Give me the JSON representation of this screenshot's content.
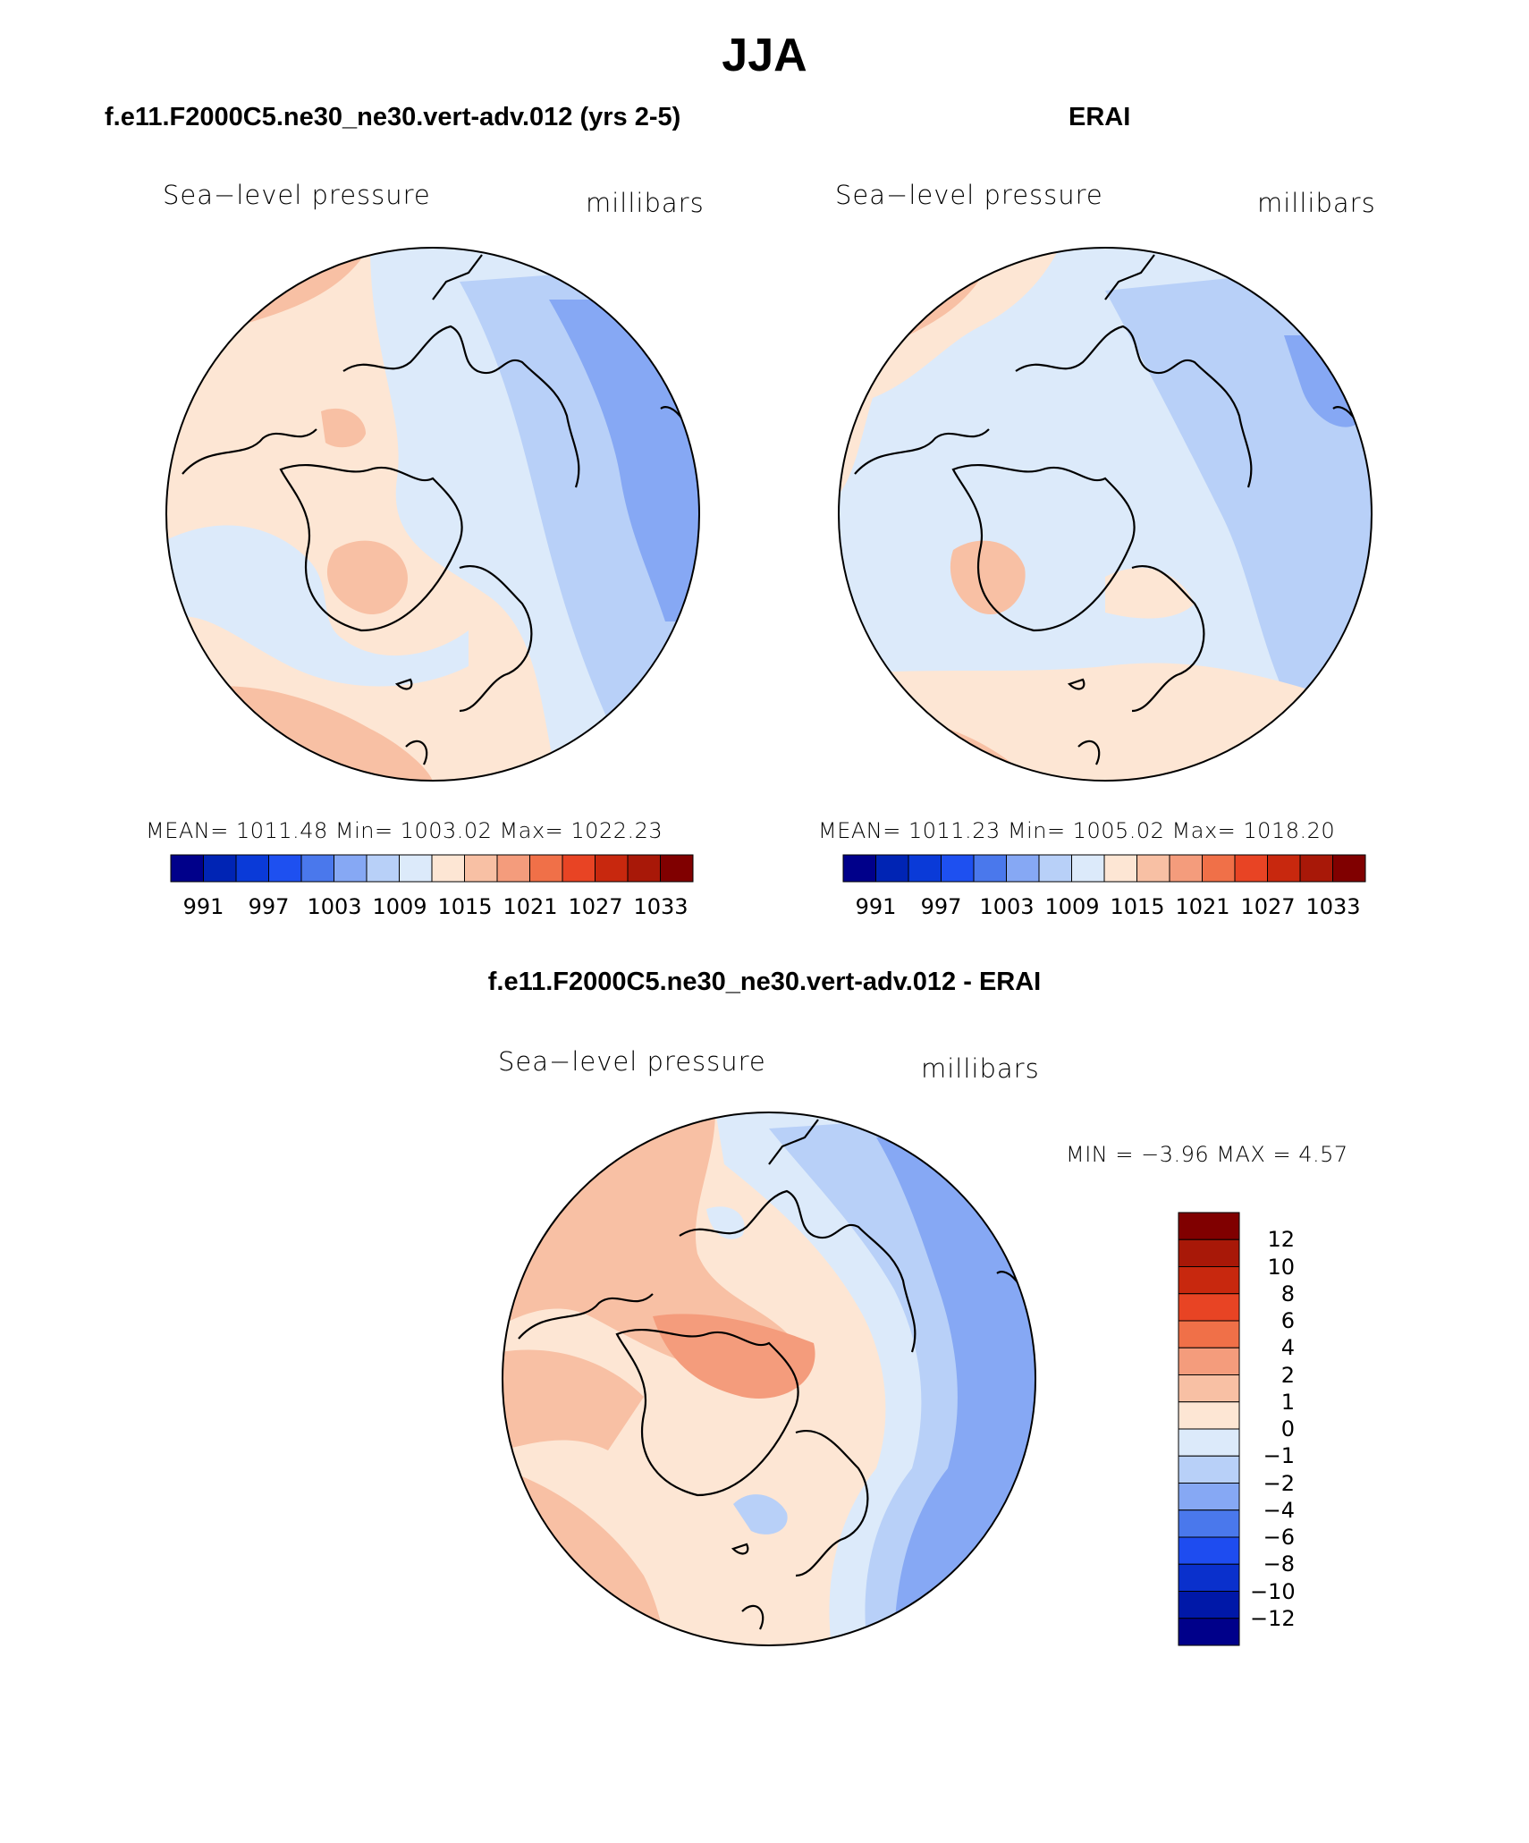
{
  "title": "JJA",
  "panels": [
    {
      "id": "model",
      "title": "f.e11.F2000C5.ne30_ne30.vert-adv.012 (yrs 2-5)",
      "left_label": "Sea−level pressure",
      "right_label": "millibars",
      "stats_text": "MEAN= 1011.48   Min= 1003.02   Max= 1022.23"
    },
    {
      "id": "obs",
      "title": "ERAI",
      "left_label": "Sea−level pressure",
      "right_label": "millibars",
      "stats_text": "MEAN= 1011.23   Min= 1005.02   Max= 1018.20"
    },
    {
      "id": "diff",
      "title": "f.e11.F2000C5.ne30_ne30.vert-adv.012 - ERAI",
      "left_label": "Sea−level pressure",
      "right_label": "millibars",
      "stats_text": "MIN =   −3.96  MAX =     4.57"
    }
  ],
  "colorbar_abs": {
    "colors": [
      "#00008a",
      "#0024b4",
      "#0a3ad8",
      "#1e50f0",
      "#4a78ec",
      "#86a8f4",
      "#b8d0f8",
      "#dceafa",
      "#fde6d4",
      "#f8c0a4",
      "#f49c7c",
      "#f07048",
      "#e84424",
      "#c8280e",
      "#a81808",
      "#800000"
    ],
    "labels": [
      "991",
      "997",
      "1003",
      "1009",
      "1015",
      "1021",
      "1027",
      "1033"
    ]
  },
  "colorbar_diff": {
    "colors": [
      "#00008a",
      "#0018a8",
      "#0a30cc",
      "#1e4cf0",
      "#4a78ec",
      "#86a8f4",
      "#b8d0f8",
      "#dceafa",
      "#fde6d4",
      "#f8c0a4",
      "#f49c7c",
      "#f07048",
      "#e84424",
      "#c8280e",
      "#a81808",
      "#800000"
    ],
    "labels": [
      "12",
      "10",
      "8",
      "6",
      "4",
      "2",
      "1",
      "0",
      "−1",
      "−2",
      "−4",
      "−6",
      "−8",
      "−10",
      "−12"
    ]
  },
  "map_colors": {
    "land_outline": "#000000",
    "pos1": "#fde6d4",
    "pos2": "#f8c0a4",
    "pos3": "#f49c7c",
    "pos4": "#f07048",
    "neg1": "#dceafa",
    "neg2": "#b8d0f8",
    "neg3": "#86a8f4"
  }
}
